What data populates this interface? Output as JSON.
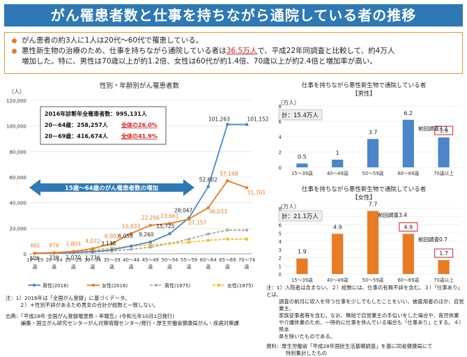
{
  "title": "がん罹患者数と仕事を持ちながら通院している者の推移",
  "summary": {
    "line1": "がん患者の約3人に1人は20代〜60代で罹患している。",
    "line2_pre": "悪性新生物の治療のため、仕事を持ちながら通院している者は",
    "line2_hl": "36.5万人",
    "line2_post": "で、平成22年同調査と比較して、約4万人",
    "line3": "増加した。特に、男性は70歳以上が約1.2倍、女性は60代が約1.4倍、70歳以上が約2.4倍と増加率が高い。"
  },
  "colors": {
    "title_bg": "#2e79b5",
    "male": "#4a86c8",
    "female": "#e97b25",
    "male1975": "#a6a6a6",
    "female1975": "#f2c12e",
    "highlight": "#d62020",
    "accent_border": "#e69a33"
  },
  "left_chart_info": {
    "total_label": "2016年診断年全罹患者数：995,131人",
    "row2_label": "20－64歳：258,257人",
    "row2_pct": "全体の26.0%",
    "row3_label": "20－69歳：416,674人",
    "row3_pct": "全体の41.9%",
    "arrow_label": "15歳〜64歳のがん罹患者数の増加"
  },
  "right_top_info": {
    "count": "計：15.4万人",
    "prev_label": "前回調査3.2"
  },
  "right_bottom_info": {
    "count": "計：21.1万人",
    "prev_label_1": "前回調査3.4",
    "prev_label_2": "前回調査0.7"
  },
  "footnotes_left": {
    "n1": "注：1）2016年は「全国がん登録」に基づくデータ。",
    "n2": "２）＊性別不詳があるため男女の合計が総数と一致しない。",
    "src1": "出典：「平成28年 全国がん登録罹患数・率報告」(令和元年10月1日発行)",
    "src2": "編集・国立がん研究センターがん対策情報センター/発行・厚生労働省健康局がん・疾病対策課"
  },
  "footnotes_right": {
    "n1": "注：1）入院者は含まない。２）総数には、仕事の有無不詳を含む。３）「仕事あり」とは、",
    "n2": "調査の前月に収入を伴う仕事を少しでもしたことをいい、被雇用者のほか、自営業主、",
    "n3": "家族従事者等を含む。なお、無給で自営業主の手伝いをした場合や、育児休業",
    "n4": "や介護休業のため、一時的に仕事を休んでいる場合も「仕事あり」とする。４）熊本",
    "n5": "県を除いたものである。",
    "src1": "資料：厚生労働省「平成28年国民生活基礎調査」を基に同省健康局にて",
    "src2": "特別集計したもの"
  },
  "chart_data": [
    {
      "type": "line",
      "title": "性別・年齢別がん罹患者数",
      "ylabel": "（人）",
      "ylim": [
        0,
        120000
      ],
      "yticks": [
        0,
        20000,
        40000,
        60000,
        80000,
        100000,
        120000
      ],
      "ytick_labels": [
        "0",
        "20,000",
        "40,000",
        "60,000",
        "80,000",
        "100,000",
        "120,000"
      ],
      "categories": [
        "15～19歳",
        "20～24歳",
        "25～29歳",
        "30～34歳",
        "35～39歳",
        "40～44歳",
        "45～49歳",
        "50～54歳",
        "55～59歳",
        "60～64歳",
        "65～69歳",
        "70～74歳"
      ],
      "series": [
        {
          "name": "男性(2016)",
          "values": [
            506,
            738,
            1070,
            1776,
            3138,
            6058,
            9260,
            15725,
            28047,
            52602,
            101263,
            101152
          ],
          "labels": [
            "506",
            "738",
            "1,070",
            "1,776",
            "3,138",
            "6,058",
            "9,260",
            "15,725",
            "28,047",
            "52,602",
            "101,263",
            "101,152"
          ]
        },
        {
          "name": "女性(2016)",
          "values": [
            465,
            876,
            1803,
            4072,
            8002,
            15933,
            22296,
            23661,
            27157,
            36033,
            57148,
            51701
          ],
          "labels": [
            "465",
            "876",
            "1,803",
            "4,072",
            "8,002",
            "15,933",
            "22,296",
            "23,661",
            "27,157",
            "36,033",
            "57,148",
            "51,701"
          ]
        },
        {
          "name": "男性(1975)",
          "values": [
            300,
            500,
            800,
            1300,
            2200,
            3500,
            5200,
            8000,
            11500,
            15500,
            18500,
            18500
          ]
        },
        {
          "name": "女性(1975)",
          "values": [
            300,
            700,
            1500,
            3000,
            4500,
            6000,
            7000,
            8000,
            9000,
            10500,
            11500,
            11500
          ]
        }
      ],
      "legend_position": "bottom"
    },
    {
      "type": "bar",
      "title": "仕事を持ちながら悪性新生物で通院している者",
      "subtitle": "【男性】",
      "ylabel": "（万人）",
      "ylim": [
        0,
        8
      ],
      "yticks": [
        0,
        2,
        4,
        6,
        8
      ],
      "categories": [
        "15～39歳",
        "40～49歳",
        "50～59歳",
        "60～69歳",
        "70歳以上"
      ],
      "values": [
        0.5,
        1,
        3.7,
        6.2,
        3.9
      ],
      "labels": [
        "0.5",
        "1",
        "3.7",
        "6.2",
        "3.9"
      ]
    },
    {
      "type": "bar",
      "title": "仕事を持ちながら悪性新生物で通院している者",
      "subtitle": "【女性】",
      "ylabel": "（万人）",
      "ylim": [
        0,
        8
      ],
      "yticks": [
        0,
        1,
        2,
        3,
        4,
        5,
        6,
        7,
        8
      ],
      "categories": [
        "15～39歳",
        "40～49歳",
        "50～59歳",
        "60～69歳",
        "70歳以上"
      ],
      "values": [
        1.9,
        4.9,
        7.7,
        4.9,
        1.7
      ],
      "labels": [
        "1.9",
        "4.9",
        "7.7",
        "4.9",
        "1.7"
      ]
    }
  ]
}
